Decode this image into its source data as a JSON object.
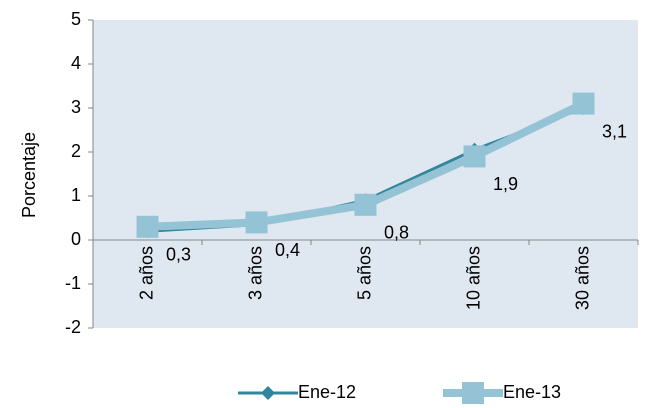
{
  "chart_data": {
    "type": "line",
    "y_label": "Porcentaje",
    "categories": [
      "2 años",
      "3 años",
      "5 años",
      "10 años",
      "30 años"
    ],
    "series": [
      {
        "name": "Ene-12",
        "color": "#31859c",
        "values": [
          0.2,
          0.35,
          0.9,
          2.05,
          3.0
        ]
      },
      {
        "name": "Ene-13",
        "color": "#93c3d4",
        "values": [
          0.3,
          0.4,
          0.8,
          1.9,
          3.1
        ],
        "value_labels": [
          "0,3",
          "0,4",
          "0,8",
          "1,9",
          "3,1"
        ]
      }
    ],
    "ylim": [
      -2,
      5
    ],
    "yticks": [
      -2,
      -1,
      0,
      1,
      2,
      3,
      4,
      5
    ],
    "legend": "bottom"
  }
}
